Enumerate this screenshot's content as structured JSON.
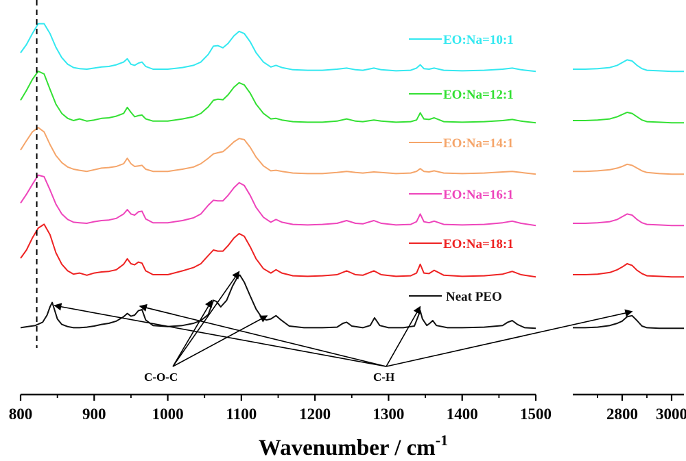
{
  "chart_data": {
    "type": "line",
    "xlabel": "Wavenumber / cm",
    "xlabel_superscript": "-1",
    "axis_segments": [
      {
        "range": [
          800,
          1500
        ],
        "ticks": [
          800,
          900,
          1000,
          1100,
          1200,
          1300,
          1400,
          1500
        ]
      },
      {
        "range": [
          2600,
          3050
        ],
        "ticks": [
          2800,
          3000
        ]
      }
    ],
    "y_axis_visible": false,
    "reference_line_x": 822,
    "series": [
      {
        "name": "EO:Na=10:1",
        "color": "#33e8f0",
        "offset": 5,
        "x": [
          800,
          808,
          816,
          824,
          832,
          840,
          848,
          856,
          864,
          872,
          880,
          890,
          900,
          910,
          920,
          930,
          940,
          945,
          950,
          955,
          960,
          965,
          970,
          980,
          1000,
          1020,
          1035,
          1045,
          1055,
          1062,
          1068,
          1075,
          1082,
          1090,
          1097,
          1104,
          1112,
          1120,
          1130,
          1140,
          1147,
          1155,
          1170,
          1190,
          1210,
          1230,
          1243,
          1255,
          1265,
          1280,
          1290,
          1310,
          1330,
          1338,
          1343,
          1348,
          1355,
          1362,
          1375,
          1400,
          1430,
          1455,
          1468,
          1480,
          1500
        ],
        "y": [
          0.35,
          0.5,
          0.7,
          0.88,
          0.88,
          0.7,
          0.45,
          0.26,
          0.14,
          0.08,
          0.06,
          0.05,
          0.07,
          0.09,
          0.1,
          0.13,
          0.18,
          0.24,
          0.14,
          0.12,
          0.16,
          0.18,
          0.1,
          0.05,
          0.05,
          0.08,
          0.12,
          0.18,
          0.32,
          0.47,
          0.48,
          0.44,
          0.52,
          0.66,
          0.74,
          0.7,
          0.55,
          0.35,
          0.18,
          0.09,
          0.12,
          0.08,
          0.04,
          0.03,
          0.03,
          0.05,
          0.07,
          0.04,
          0.03,
          0.07,
          0.04,
          0.02,
          0.03,
          0.07,
          0.13,
          0.06,
          0.05,
          0.07,
          0.03,
          0.02,
          0.03,
          0.05,
          0.07,
          0.04,
          0.01
        ],
        "x2": [
          2600,
          2650,
          2700,
          2750,
          2780,
          2800,
          2820,
          2840,
          2860,
          2880,
          2900,
          2950,
          3000,
          3050
        ],
        "y2": [
          0.05,
          0.05,
          0.06,
          0.08,
          0.12,
          0.17,
          0.22,
          0.2,
          0.12,
          0.06,
          0.03,
          0.02,
          0.01,
          0.01
        ]
      },
      {
        "name": "EO:Na=12:1",
        "color": "#33e033",
        "offset": 4,
        "x": [
          800,
          808,
          816,
          824,
          832,
          840,
          848,
          856,
          864,
          872,
          880,
          890,
          900,
          910,
          920,
          930,
          940,
          945,
          950,
          955,
          960,
          965,
          970,
          980,
          1000,
          1020,
          1035,
          1045,
          1055,
          1062,
          1068,
          1075,
          1082,
          1090,
          1097,
          1104,
          1112,
          1120,
          1130,
          1140,
          1147,
          1155,
          1170,
          1190,
          1210,
          1230,
          1243,
          1255,
          1265,
          1280,
          1290,
          1310,
          1330,
          1338,
          1343,
          1348,
          1355,
          1362,
          1375,
          1400,
          1430,
          1455,
          1468,
          1480,
          1500
        ],
        "y": [
          0.42,
          0.6,
          0.8,
          0.95,
          0.9,
          0.62,
          0.35,
          0.18,
          0.09,
          0.05,
          0.08,
          0.04,
          0.06,
          0.09,
          0.1,
          0.13,
          0.18,
          0.29,
          0.2,
          0.12,
          0.14,
          0.15,
          0.08,
          0.04,
          0.04,
          0.08,
          0.12,
          0.18,
          0.3,
          0.42,
          0.44,
          0.43,
          0.52,
          0.66,
          0.74,
          0.7,
          0.55,
          0.35,
          0.18,
          0.08,
          0.09,
          0.06,
          0.03,
          0.02,
          0.02,
          0.04,
          0.08,
          0.04,
          0.03,
          0.06,
          0.04,
          0.02,
          0.03,
          0.06,
          0.19,
          0.08,
          0.07,
          0.1,
          0.03,
          0.02,
          0.03,
          0.05,
          0.07,
          0.04,
          0.01
        ],
        "x2": [
          2600,
          2650,
          2700,
          2750,
          2780,
          2800,
          2820,
          2840,
          2860,
          2880,
          2900,
          2950,
          3000,
          3050
        ],
        "y2": [
          0.05,
          0.05,
          0.06,
          0.08,
          0.12,
          0.16,
          0.2,
          0.18,
          0.12,
          0.06,
          0.03,
          0.02,
          0.01,
          0.01
        ]
      },
      {
        "name": "EO:Na=14:1",
        "color": "#f5a56a",
        "offset": 3,
        "x": [
          800,
          808,
          816,
          824,
          832,
          840,
          848,
          856,
          864,
          872,
          880,
          890,
          900,
          910,
          920,
          930,
          940,
          945,
          950,
          955,
          960,
          965,
          970,
          980,
          1000,
          1020,
          1035,
          1045,
          1055,
          1062,
          1068,
          1075,
          1082,
          1090,
          1097,
          1104,
          1112,
          1120,
          1130,
          1140,
          1147,
          1155,
          1170,
          1190,
          1210,
          1230,
          1243,
          1255,
          1265,
          1280,
          1290,
          1310,
          1330,
          1338,
          1343,
          1348,
          1355,
          1362,
          1375,
          1400,
          1430,
          1455,
          1468,
          1480,
          1500
        ],
        "y": [
          0.45,
          0.62,
          0.78,
          0.86,
          0.78,
          0.55,
          0.35,
          0.22,
          0.14,
          0.1,
          0.08,
          0.06,
          0.09,
          0.12,
          0.13,
          0.15,
          0.2,
          0.3,
          0.2,
          0.15,
          0.16,
          0.17,
          0.1,
          0.06,
          0.06,
          0.1,
          0.14,
          0.2,
          0.3,
          0.38,
          0.4,
          0.42,
          0.5,
          0.6,
          0.66,
          0.64,
          0.5,
          0.32,
          0.16,
          0.07,
          0.08,
          0.06,
          0.03,
          0.02,
          0.02,
          0.04,
          0.06,
          0.04,
          0.03,
          0.05,
          0.04,
          0.02,
          0.03,
          0.06,
          0.11,
          0.06,
          0.05,
          0.07,
          0.03,
          0.02,
          0.03,
          0.05,
          0.06,
          0.04,
          0.01
        ],
        "x2": [
          2600,
          2650,
          2700,
          2750,
          2780,
          2800,
          2820,
          2840,
          2860,
          2880,
          2900,
          2950,
          3000,
          3050
        ],
        "y2": [
          0.06,
          0.06,
          0.07,
          0.09,
          0.12,
          0.15,
          0.19,
          0.17,
          0.12,
          0.07,
          0.04,
          0.02,
          0.01,
          0.01
        ]
      },
      {
        "name": "EO:Na=16:1",
        "color": "#ee44bb",
        "offset": 2,
        "x": [
          800,
          808,
          816,
          824,
          832,
          840,
          848,
          856,
          864,
          872,
          880,
          890,
          900,
          910,
          920,
          930,
          940,
          945,
          950,
          955,
          960,
          965,
          970,
          980,
          1000,
          1020,
          1035,
          1045,
          1055,
          1062,
          1068,
          1075,
          1082,
          1090,
          1097,
          1104,
          1112,
          1120,
          1130,
          1140,
          1147,
          1155,
          1170,
          1190,
          1210,
          1230,
          1243,
          1255,
          1265,
          1280,
          1290,
          1310,
          1330,
          1338,
          1343,
          1348,
          1355,
          1362,
          1375,
          1400,
          1430,
          1455,
          1468,
          1480,
          1500
        ],
        "y": [
          0.42,
          0.58,
          0.76,
          0.93,
          0.9,
          0.66,
          0.4,
          0.22,
          0.12,
          0.07,
          0.06,
          0.05,
          0.08,
          0.1,
          0.11,
          0.14,
          0.22,
          0.3,
          0.22,
          0.2,
          0.26,
          0.27,
          0.13,
          0.06,
          0.06,
          0.1,
          0.15,
          0.22,
          0.38,
          0.47,
          0.46,
          0.46,
          0.56,
          0.7,
          0.79,
          0.74,
          0.56,
          0.34,
          0.16,
          0.07,
          0.12,
          0.07,
          0.03,
          0.02,
          0.03,
          0.05,
          0.1,
          0.05,
          0.04,
          0.1,
          0.05,
          0.02,
          0.03,
          0.08,
          0.22,
          0.08,
          0.06,
          0.09,
          0.03,
          0.02,
          0.03,
          0.06,
          0.09,
          0.05,
          0.01
        ],
        "x2": [
          2600,
          2650,
          2700,
          2750,
          2780,
          2800,
          2820,
          2840,
          2860,
          2880,
          2900,
          2950,
          3000,
          3050
        ],
        "y2": [
          0.05,
          0.05,
          0.06,
          0.08,
          0.12,
          0.17,
          0.22,
          0.2,
          0.12,
          0.06,
          0.03,
          0.02,
          0.01,
          0.01
        ]
      },
      {
        "name": "EO:Na=18:1",
        "color": "#ee2222",
        "offset": 1,
        "x": [
          800,
          808,
          816,
          824,
          832,
          840,
          848,
          856,
          864,
          872,
          880,
          890,
          900,
          910,
          920,
          930,
          940,
          945,
          950,
          955,
          960,
          965,
          970,
          980,
          1000,
          1020,
          1035,
          1045,
          1055,
          1062,
          1068,
          1075,
          1082,
          1090,
          1097,
          1104,
          1112,
          1120,
          1130,
          1140,
          1147,
          1155,
          1170,
          1190,
          1210,
          1230,
          1243,
          1255,
          1265,
          1280,
          1290,
          1310,
          1330,
          1338,
          1343,
          1348,
          1355,
          1362,
          1375,
          1400,
          1430,
          1455,
          1468,
          1480,
          1500
        ],
        "y": [
          0.35,
          0.5,
          0.72,
          0.9,
          0.97,
          0.78,
          0.45,
          0.24,
          0.12,
          0.06,
          0.08,
          0.04,
          0.08,
          0.1,
          0.11,
          0.14,
          0.24,
          0.34,
          0.25,
          0.23,
          0.28,
          0.26,
          0.12,
          0.05,
          0.05,
          0.12,
          0.18,
          0.25,
          0.4,
          0.5,
          0.48,
          0.48,
          0.58,
          0.72,
          0.8,
          0.75,
          0.56,
          0.34,
          0.16,
          0.08,
          0.14,
          0.08,
          0.03,
          0.02,
          0.03,
          0.05,
          0.12,
          0.05,
          0.04,
          0.12,
          0.05,
          0.02,
          0.03,
          0.08,
          0.24,
          0.08,
          0.07,
          0.13,
          0.04,
          0.02,
          0.03,
          0.06,
          0.11,
          0.05,
          0.01
        ],
        "x2": [
          2600,
          2650,
          2700,
          2750,
          2780,
          2800,
          2820,
          2840,
          2860,
          2880,
          2900,
          2950,
          3000,
          3050
        ],
        "y2": [
          0.05,
          0.05,
          0.06,
          0.09,
          0.14,
          0.19,
          0.25,
          0.22,
          0.13,
          0.07,
          0.03,
          0.02,
          0.01,
          0.01
        ]
      },
      {
        "name": "Neat PEO",
        "color": "#111111",
        "offset": 0,
        "x": [
          800,
          810,
          820,
          830,
          836,
          840,
          843,
          846,
          850,
          856,
          864,
          872,
          880,
          890,
          900,
          910,
          920,
          930,
          940,
          945,
          950,
          955,
          960,
          965,
          970,
          980,
          1000,
          1020,
          1035,
          1045,
          1055,
          1062,
          1066,
          1072,
          1080,
          1088,
          1095,
          1098,
          1104,
          1112,
          1120,
          1128,
          1134,
          1140,
          1147,
          1154,
          1165,
          1185,
          1210,
          1230,
          1238,
          1243,
          1250,
          1265,
          1275,
          1281,
          1288,
          1300,
          1320,
          1335,
          1340,
          1343,
          1346,
          1352,
          1356,
          1360,
          1365,
          1380,
          1400,
          1430,
          1455,
          1462,
          1468,
          1475,
          1485,
          1500
        ],
        "y": [
          0.02,
          0.04,
          0.06,
          0.12,
          0.25,
          0.4,
          0.48,
          0.35,
          0.18,
          0.08,
          0.04,
          0.02,
          0.02,
          0.03,
          0.05,
          0.08,
          0.1,
          0.14,
          0.22,
          0.28,
          0.23,
          0.25,
          0.33,
          0.35,
          0.16,
          0.06,
          0.04,
          0.06,
          0.1,
          0.15,
          0.26,
          0.52,
          0.5,
          0.4,
          0.52,
          0.78,
          0.95,
          0.98,
          0.85,
          0.6,
          0.36,
          0.2,
          0.16,
          0.18,
          0.24,
          0.16,
          0.05,
          0.02,
          0.02,
          0.03,
          0.1,
          0.12,
          0.05,
          0.02,
          0.06,
          0.2,
          0.06,
          0.02,
          0.02,
          0.05,
          0.22,
          0.33,
          0.18,
          0.06,
          0.1,
          0.15,
          0.06,
          0.02,
          0.02,
          0.03,
          0.06,
          0.12,
          0.15,
          0.08,
          0.02,
          0.01
        ],
        "x2": [
          2600,
          2650,
          2700,
          2750,
          2780,
          2800,
          2820,
          2840,
          2860,
          2880,
          2900,
          2950,
          3000,
          3050
        ],
        "y2": [
          0.02,
          0.02,
          0.03,
          0.06,
          0.1,
          0.14,
          0.22,
          0.24,
          0.15,
          0.05,
          0.02,
          0.01,
          0.01,
          0.01
        ]
      }
    ],
    "annotations": [
      {
        "label": "C-O-C",
        "targets": [
          1060,
          1097,
          1135
        ]
      },
      {
        "label": "C-H",
        "targets": [
          846,
          962,
          1343,
          2840
        ]
      }
    ]
  }
}
